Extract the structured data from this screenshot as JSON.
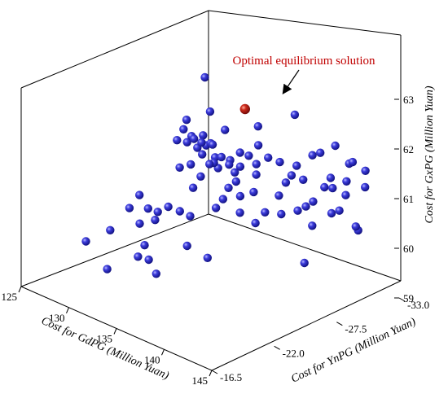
{
  "chart_data": {
    "type": "scatter3d",
    "title": "",
    "colors": {
      "point": "#1a1ab8",
      "highlight": "#b01010",
      "annotation_text": "#c00000"
    },
    "axes": {
      "x": {
        "label": "Cost for GdPG (Million Yuan)",
        "range": [
          125,
          145
        ],
        "ticks": [
          "125",
          "130",
          "135",
          "140",
          "145"
        ]
      },
      "y": {
        "label": "Cost for YnPG (Million Yuan)",
        "range": [
          -16.5,
          -33.0
        ],
        "ticks": [
          "-16.5",
          "-22.0",
          "-27.5",
          "-33.0"
        ]
      },
      "z": {
        "label": "Cost for GxPG (Million Yuan)",
        "range": [
          59,
          63
        ],
        "ticks": [
          "59",
          "60",
          "61",
          "62",
          "63"
        ]
      }
    },
    "highlight": {
      "label": "Optimal equilibrium solution",
      "x": 133,
      "y": -29.5,
      "z": 62.1
    },
    "points": [
      [
        141.2,
        -27.0,
        62.9
      ],
      [
        133.5,
        -26.0,
        62.4
      ],
      [
        127.0,
        -31.0,
        62.1
      ],
      [
        135.2,
        -28.8,
        62.0
      ],
      [
        133.4,
        -27.4,
        61.9
      ],
      [
        130.5,
        -27.9,
        61.5
      ],
      [
        129.2,
        -26.7,
        61.4
      ],
      [
        131.6,
        -26.9,
        61.3
      ],
      [
        134.5,
        -27.8,
        61.5
      ],
      [
        133.2,
        -26.2,
        61.3
      ],
      [
        135.5,
        -26.5,
        61.3
      ],
      [
        126.5,
        -29.2,
        60.4
      ],
      [
        126.8,
        -29.6,
        60.9
      ],
      [
        127.5,
        -29.4,
        61.1
      ],
      [
        128.0,
        -29.5,
        60.9
      ],
      [
        127.9,
        -29.0,
        60.6
      ],
      [
        130.1,
        -29.3,
        60.9
      ],
      [
        129.3,
        -28.7,
        60.5
      ],
      [
        131.2,
        -29.7,
        60.9
      ],
      [
        132.0,
        -28.4,
        60.3
      ],
      [
        132.3,
        -29.3,
        60.6
      ],
      [
        133.3,
        -28.8,
        60.1
      ],
      [
        134.5,
        -29.0,
        60.6
      ],
      [
        136.0,
        -27.9,
        60.2
      ],
      [
        135.5,
        -31.5,
        60.8
      ],
      [
        136.5,
        -31.2,
        60.2
      ],
      [
        138.0,
        -32.3,
        60.7
      ],
      [
        137.8,
        -30.7,
        59.3
      ],
      [
        138.5,
        -32.5,
        60.2
      ],
      [
        139.8,
        -32.1,
        60.4
      ],
      [
        139.6,
        -32.9,
        60.9
      ],
      [
        140.7,
        -33.0,
        60.0
      ],
      [
        139.0,
        -32.0,
        61.0
      ],
      [
        142.0,
        -31.7,
        60.3
      ],
      [
        141.3,
        -31.4,
        60.9
      ],
      [
        140.4,
        -31.0,
        61.0
      ],
      [
        137.4,
        -29.4,
        61.0
      ],
      [
        137.0,
        -27.9,
        60.5
      ],
      [
        137.4,
        -29.0,
        60.4
      ],
      [
        138.5,
        -30.8,
        60.1
      ],
      [
        136.0,
        -32.1,
        60.7
      ],
      [
        137.0,
        -31.5,
        60.3
      ],
      [
        138.0,
        -31.3,
        60.5
      ],
      [
        136.2,
        -29.8,
        60.6
      ],
      [
        125.5,
        -26.5,
        60.0
      ],
      [
        125.4,
        -25.7,
        59.8
      ],
      [
        126.9,
        -26.7,
        59.6
      ],
      [
        127.0,
        -26.0,
        59.9
      ],
      [
        127.9,
        -26.1,
        59.9
      ],
      [
        128.4,
        -26.6,
        60.0
      ],
      [
        129.1,
        -28.2,
        60.3
      ],
      [
        128.9,
        -27.2,
        59.9
      ],
      [
        126.0,
        -23.5,
        59.6
      ],
      [
        125.6,
        -21.7,
        59.5
      ],
      [
        127.7,
        -25.1,
        59.3
      ],
      [
        128.2,
        -24.1,
        59.2
      ],
      [
        130.5,
        -26.5,
        59.4
      ],
      [
        132.4,
        -26.7,
        59.3
      ],
      [
        127.5,
        -28.7,
        61.3
      ],
      [
        128.6,
        -28.7,
        61.2
      ],
      [
        129.4,
        -29.1,
        61.1
      ],
      [
        130.0,
        -29.0,
        61.2
      ],
      [
        131.0,
        -29.1,
        61.0
      ],
      [
        131.6,
        -28.3,
        60.9
      ],
      [
        132.8,
        -30.0,
        61.1
      ],
      [
        133.2,
        -30.5,
        61.3
      ],
      [
        134.0,
        -30.7,
        61.1
      ],
      [
        134.5,
        -31.3,
        61.0
      ],
      [
        135.8,
        -31.7,
        61.0
      ],
      [
        136.5,
        -32.5,
        61.2
      ],
      [
        137.2,
        -32.6,
        61.3
      ],
      [
        138.3,
        -33.0,
        61.5
      ],
      [
        140.0,
        -32.8,
        61.3
      ],
      [
        140.6,
        -32.6,
        61.4
      ],
      [
        141.7,
        -32.8,
        61.3
      ],
      [
        142.5,
        -32.1,
        61.1
      ],
      [
        129.6,
        -27.2,
        61.8
      ],
      [
        130.7,
        -27.6,
        61.4
      ],
      [
        131.5,
        -27.9,
        61.4
      ],
      [
        132.0,
        -27.6,
        61.1
      ],
      [
        133.6,
        -27.6,
        61.2
      ],
      [
        134.4,
        -27.9,
        61.2
      ],
      [
        135.5,
        -28.4,
        61.3
      ],
      [
        136.2,
        -27.8,
        61.2
      ],
      [
        134.0,
        -27.2,
        60.8
      ],
      [
        135.0,
        -27.4,
        60.7
      ],
      [
        133.4,
        -26.6,
        60.4
      ],
      [
        131.3,
        -26.1,
        60.1
      ],
      [
        128.5,
        -24.0,
        59.9
      ],
      [
        131.9,
        -22.6,
        59.3
      ],
      [
        128.9,
        -20.8,
        59.3
      ],
      [
        131.0,
        -22.7,
        59.5
      ]
    ]
  }
}
